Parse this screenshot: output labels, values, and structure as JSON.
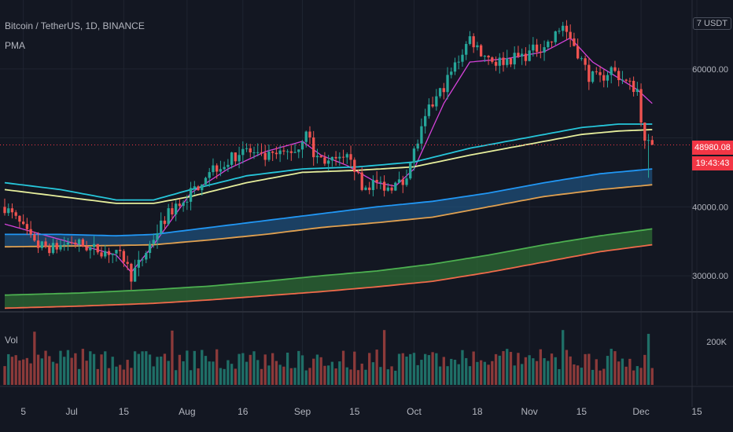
{
  "header": {
    "symbol": "Bitcoin / TetherUS, 1D, BINANCE",
    "indicator": "PMA",
    "currency": "USDT",
    "currency_prefix": "7"
  },
  "volume_pane": {
    "label": "Vol",
    "scale_label": "200K"
  },
  "last_price": {
    "value": "48980.08",
    "countdown": "19:43:43"
  },
  "colors": {
    "background": "#131722",
    "grid": "#1f2430",
    "up": "#26a69a",
    "down": "#ef5350",
    "vol_up": "#1f6f67",
    "vol_down": "#8c3a3a",
    "pma_fast": "#d442d9",
    "ma_cyan": "#26c6da",
    "ma_yellow": "#e6ee9c",
    "ma_blue": "#2196f3",
    "ma_orange": "#e0a050",
    "ma_green": "#4caf50",
    "ma_red": "#ef6a4a",
    "band_blue": "#1f4f7a",
    "band_green": "#2e6b34",
    "price_line": "#f23645"
  },
  "chart_data": {
    "type": "candlestick",
    "title": "Bitcoin / TetherUS, 1D, BINANCE",
    "y_ticks": [
      30000,
      40000,
      50000,
      60000
    ],
    "y_tick_labels": [
      "30000.00",
      "40000.00",
      "",
      "60000.00"
    ],
    "x_tick_labels": [
      "5",
      "Jul",
      "15",
      "Aug",
      "16",
      "Sep",
      "15",
      "Oct",
      "18",
      "Nov",
      "15",
      "Dec",
      "15"
    ],
    "x_tick_days": [
      5,
      18,
      32,
      49,
      64,
      80,
      94,
      110,
      127,
      141,
      155,
      171,
      186
    ],
    "ylim": [
      25000,
      70000
    ],
    "days": 175,
    "last_price": 48980.08,
    "close_anchors": [
      [
        0,
        40000
      ],
      [
        4,
        37500
      ],
      [
        8,
        34500
      ],
      [
        13,
        34000
      ],
      [
        18,
        35000
      ],
      [
        23,
        34000
      ],
      [
        28,
        33500
      ],
      [
        32,
        32500
      ],
      [
        34,
        30000
      ],
      [
        37,
        32500
      ],
      [
        41,
        36500
      ],
      [
        44,
        39000
      ],
      [
        47,
        40500
      ],
      [
        51,
        42500
      ],
      [
        55,
        45500
      ],
      [
        60,
        46500
      ],
      [
        64,
        48500
      ],
      [
        69,
        47000
      ],
      [
        74,
        47500
      ],
      [
        79,
        48500
      ],
      [
        81,
        51500
      ],
      [
        83,
        47500
      ],
      [
        87,
        46500
      ],
      [
        91,
        46500
      ],
      [
        93,
        47500
      ],
      [
        96,
        42500
      ],
      [
        99,
        43500
      ],
      [
        103,
        43000
      ],
      [
        107,
        43500
      ],
      [
        110,
        48000
      ],
      [
        114,
        54000
      ],
      [
        118,
        57500
      ],
      [
        122,
        61500
      ],
      [
        125,
        64500
      ],
      [
        128,
        62500
      ],
      [
        132,
        61000
      ],
      [
        136,
        61500
      ],
      [
        140,
        62000
      ],
      [
        143,
        63000
      ],
      [
        147,
        64000
      ],
      [
        150,
        66500
      ],
      [
        153,
        63500
      ],
      [
        157,
        59000
      ],
      [
        160,
        58500
      ],
      [
        163,
        60000
      ],
      [
        167,
        58000
      ],
      [
        170,
        57000
      ],
      [
        172,
        49000
      ],
      [
        174,
        48980
      ]
    ],
    "series": [
      {
        "name": "PMA fast",
        "color_key": "pma_fast",
        "points": [
          [
            0,
            37500
          ],
          [
            10,
            36000
          ],
          [
            20,
            34500
          ],
          [
            30,
            33000
          ],
          [
            34,
            30500
          ],
          [
            40,
            34500
          ],
          [
            50,
            42000
          ],
          [
            60,
            45500
          ],
          [
            70,
            48000
          ],
          [
            80,
            49500
          ],
          [
            85,
            47500
          ],
          [
            92,
            46000
          ],
          [
            100,
            43500
          ],
          [
            105,
            43000
          ],
          [
            110,
            45500
          ],
          [
            118,
            55000
          ],
          [
            125,
            61000
          ],
          [
            135,
            61500
          ],
          [
            145,
            62500
          ],
          [
            152,
            64500
          ],
          [
            158,
            61000
          ],
          [
            164,
            59000
          ],
          [
            170,
            57000
          ],
          [
            174,
            55000
          ]
        ]
      },
      {
        "name": "MA cyan",
        "color_key": "ma_cyan",
        "points": [
          [
            0,
            43500
          ],
          [
            15,
            42500
          ],
          [
            30,
            41000
          ],
          [
            40,
            41000
          ],
          [
            50,
            42500
          ],
          [
            65,
            44500
          ],
          [
            80,
            45500
          ],
          [
            95,
            45800
          ],
          [
            110,
            46500
          ],
          [
            125,
            48500
          ],
          [
            140,
            50000
          ],
          [
            155,
            51500
          ],
          [
            165,
            52000
          ],
          [
            174,
            52000
          ]
        ]
      },
      {
        "name": "MA yellow",
        "color_key": "ma_yellow",
        "points": [
          [
            0,
            42500
          ],
          [
            15,
            41500
          ],
          [
            30,
            40500
          ],
          [
            40,
            40500
          ],
          [
            50,
            41500
          ],
          [
            65,
            43500
          ],
          [
            80,
            45000
          ],
          [
            95,
            45300
          ],
          [
            110,
            45800
          ],
          [
            125,
            47500
          ],
          [
            140,
            49000
          ],
          [
            155,
            50500
          ],
          [
            165,
            51000
          ],
          [
            174,
            51200
          ]
        ]
      },
      {
        "name": "MA blue",
        "color_key": "ma_blue",
        "points": [
          [
            0,
            36000
          ],
          [
            15,
            36000
          ],
          [
            30,
            35800
          ],
          [
            40,
            36000
          ],
          [
            55,
            37000
          ],
          [
            70,
            38000
          ],
          [
            85,
            39000
          ],
          [
            100,
            40000
          ],
          [
            115,
            40800
          ],
          [
            130,
            42000
          ],
          [
            145,
            43500
          ],
          [
            160,
            44800
          ],
          [
            174,
            45500
          ]
        ]
      },
      {
        "name": "MA orange",
        "color_key": "ma_orange",
        "points": [
          [
            0,
            34200
          ],
          [
            15,
            34300
          ],
          [
            30,
            34400
          ],
          [
            40,
            34500
          ],
          [
            55,
            35200
          ],
          [
            70,
            36000
          ],
          [
            85,
            37000
          ],
          [
            100,
            37700
          ],
          [
            115,
            38500
          ],
          [
            130,
            40000
          ],
          [
            145,
            41500
          ],
          [
            160,
            42500
          ],
          [
            174,
            43200
          ]
        ]
      },
      {
        "name": "MA green",
        "color_key": "ma_green",
        "points": [
          [
            0,
            27200
          ],
          [
            20,
            27500
          ],
          [
            40,
            28000
          ],
          [
            55,
            28500
          ],
          [
            70,
            29200
          ],
          [
            85,
            30000
          ],
          [
            100,
            30700
          ],
          [
            115,
            31700
          ],
          [
            130,
            33000
          ],
          [
            145,
            34500
          ],
          [
            160,
            35800
          ],
          [
            174,
            36800
          ]
        ]
      },
      {
        "name": "MA red",
        "color_key": "ma_red",
        "points": [
          [
            0,
            25300
          ],
          [
            20,
            25600
          ],
          [
            40,
            26000
          ],
          [
            55,
            26500
          ],
          [
            70,
            27100
          ],
          [
            85,
            27700
          ],
          [
            100,
            28400
          ],
          [
            115,
            29200
          ],
          [
            130,
            30500
          ],
          [
            145,
            32000
          ],
          [
            160,
            33500
          ],
          [
            174,
            34500
          ]
        ]
      }
    ],
    "bands": [
      {
        "upper": "MA blue",
        "lower": "MA orange",
        "color_key": "band_blue"
      },
      {
        "upper": "MA green",
        "lower": "MA red",
        "color_key": "band_green"
      }
    ],
    "volume_max": 200000
  }
}
